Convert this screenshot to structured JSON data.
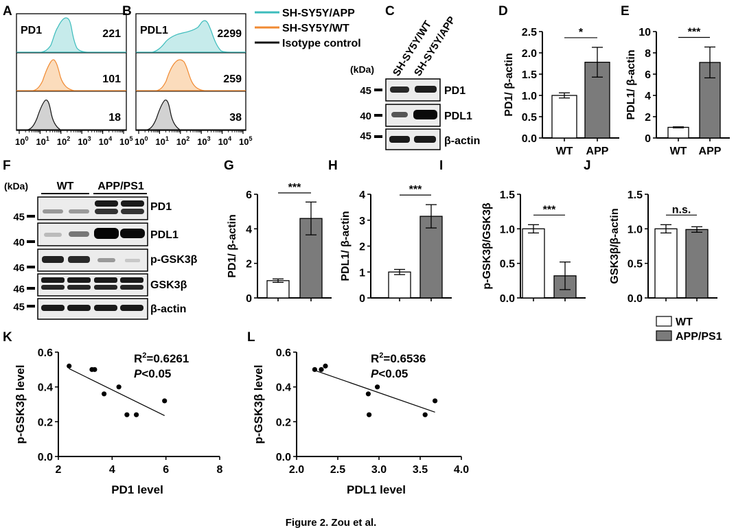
{
  "panels": {
    "A": "A",
    "B": "B",
    "C": "C",
    "D": "D",
    "E": "E",
    "F": "F",
    "G": "G",
    "H": "H",
    "I": "I",
    "J": "J",
    "K": "K",
    "L": "L"
  },
  "flow": {
    "panel_A_title": "PD1",
    "panel_B_title": "PDL1",
    "panel_A_values": [
      "221",
      "101",
      "18"
    ],
    "panel_B_values": [
      "2299",
      "259",
      "38"
    ],
    "xticks": [
      "10",
      "10",
      "10",
      "10",
      "10",
      "10"
    ],
    "xtick_exponents": [
      "0",
      "1",
      "2",
      "3",
      "4",
      "5"
    ],
    "legend": [
      {
        "label": "SH-SY5Y/APP",
        "color": "#3cbcbc",
        "fill": "#c6ebeb"
      },
      {
        "label": "SH-SY5Y/WT",
        "color": "#f08a32",
        "fill": "#fbdcbc"
      },
      {
        "label": "Isotype control",
        "color": "#111111",
        "fill": "#d2d2d2"
      }
    ]
  },
  "blotC": {
    "kda": "(kDa)",
    "lane_labels": [
      "SH-SY5Y/WT",
      "SH-SY5Y/APP"
    ],
    "rows": [
      {
        "marker": "45",
        "protein": "PD1"
      },
      {
        "marker": "40",
        "protein": "PDL1"
      },
      {
        "marker": "45",
        "protein": "β-actin"
      }
    ]
  },
  "blotF": {
    "kda": "(kDa)",
    "group_labels": [
      "WT",
      "APP/PS1"
    ],
    "rows": [
      {
        "marker": "45",
        "protein": "PD1"
      },
      {
        "marker": "40",
        "protein": "PDL1"
      },
      {
        "marker": "46",
        "protein": "p-GSK3β"
      },
      {
        "marker": "46",
        "protein": "GSK3β"
      },
      {
        "marker": "45",
        "protein": "β-actin"
      }
    ]
  },
  "bar_legend": [
    {
      "label": "WT",
      "color": "#ffffff"
    },
    {
      "label": "APP/PS1",
      "color": "#7b7b7b"
    }
  ],
  "chart_data": [
    {
      "panel": "D",
      "type": "bar",
      "categories": [
        "WT",
        "APP"
      ],
      "values": [
        1.0,
        1.78
      ],
      "errors": [
        0.06,
        0.35
      ],
      "ylabel": "PD1/ β-actin",
      "ylim": [
        0,
        2.5
      ],
      "yticks": [
        "0.0",
        "0.5",
        "1.0",
        "1.5",
        "2.0",
        "2.5"
      ],
      "significance": "*",
      "colors": [
        "#ffffff",
        "#7b7b7b"
      ]
    },
    {
      "panel": "E",
      "type": "bar",
      "categories": [
        "WT",
        "APP"
      ],
      "values": [
        1.0,
        7.1
      ],
      "errors": [
        0.05,
        1.45
      ],
      "ylabel": "PDL1/ β-actin",
      "ylim": [
        0,
        10
      ],
      "yticks": [
        "0",
        "2",
        "4",
        "6",
        "8",
        "10"
      ],
      "significance": "***",
      "colors": [
        "#ffffff",
        "#7b7b7b"
      ]
    },
    {
      "panel": "G",
      "type": "bar",
      "categories": [
        "",
        ""
      ],
      "values": [
        1.0,
        4.6
      ],
      "errors": [
        0.1,
        0.95
      ],
      "ylabel": "PD1/ β-actin",
      "ylim": [
        0,
        6
      ],
      "yticks": [
        "0",
        "2",
        "4",
        "6"
      ],
      "significance": "***",
      "colors": [
        "#ffffff",
        "#7b7b7b"
      ]
    },
    {
      "panel": "H",
      "type": "bar",
      "categories": [
        "",
        ""
      ],
      "values": [
        1.0,
        3.15
      ],
      "errors": [
        0.1,
        0.45
      ],
      "ylabel": "PDL1/ β-actin",
      "ylim": [
        0,
        4
      ],
      "yticks": [
        "0",
        "1",
        "2",
        "3",
        "4"
      ],
      "significance": "***",
      "colors": [
        "#ffffff",
        "#7b7b7b"
      ]
    },
    {
      "panel": "I",
      "type": "bar",
      "categories": [
        "",
        ""
      ],
      "values": [
        1.0,
        0.32
      ],
      "errors": [
        0.06,
        0.2
      ],
      "ylabel": "p-GSK3β/GSK3β",
      "ylim": [
        0,
        1.5
      ],
      "yticks": [
        "0.0",
        "0.5",
        "1.0",
        "1.5"
      ],
      "significance": "***",
      "colors": [
        "#ffffff",
        "#7b7b7b"
      ]
    },
    {
      "panel": "J",
      "type": "bar",
      "categories": [
        "",
        ""
      ],
      "values": [
        1.0,
        0.99
      ],
      "errors": [
        0.06,
        0.04
      ],
      "ylabel": "GSK3β/β-actin",
      "ylim": [
        0,
        1.5
      ],
      "yticks": [
        "0.0",
        "0.5",
        "1.0",
        "1.5"
      ],
      "significance": "n.s.",
      "colors": [
        "#ffffff",
        "#7b7b7b"
      ]
    },
    {
      "panel": "K",
      "type": "scatter",
      "x": [
        2.4,
        3.25,
        3.35,
        3.7,
        4.25,
        4.55,
        4.9,
        5.95
      ],
      "y": [
        0.52,
        0.5,
        0.5,
        0.36,
        0.4,
        0.24,
        0.24,
        0.32
      ],
      "fit": {
        "x": [
          2.4,
          5.95
        ],
        "y": [
          0.505,
          0.235
        ]
      },
      "xlabel": "PD1 level",
      "ylabel": "p-GSK3β level",
      "xlim": [
        2,
        8
      ],
      "ylim": [
        0,
        0.6
      ],
      "xticks": [
        "2",
        "4",
        "6",
        "8"
      ],
      "yticks": [
        "0.0",
        "0.2",
        "0.4",
        "0.6"
      ],
      "stat_r2": "=0.6261",
      "stat_p": "<0.05"
    },
    {
      "panel": "L",
      "type": "scatter",
      "x": [
        2.22,
        2.3,
        2.35,
        2.87,
        2.88,
        2.98,
        3.56,
        3.68
      ],
      "y": [
        0.5,
        0.5,
        0.52,
        0.36,
        0.24,
        0.4,
        0.24,
        0.32
      ],
      "fit": {
        "x": [
          2.22,
          3.68
        ],
        "y": [
          0.495,
          0.255
        ]
      },
      "xlabel": "PDL1 level",
      "ylabel": "p-GSK3β level",
      "xlim": [
        2.0,
        4.0
      ],
      "ylim": [
        0,
        0.6
      ],
      "xticks": [
        "2.0",
        "2.5",
        "3.0",
        "3.5",
        "4.0"
      ],
      "yticks": [
        "0.0",
        "0.2",
        "0.4",
        "0.6"
      ],
      "stat_r2": "=0.6536",
      "stat_p": "<0.05"
    }
  ],
  "stat_labels": {
    "r": "R",
    "sup": "2",
    "p": "P"
  },
  "caption": "Figure 2.  Zou et al."
}
